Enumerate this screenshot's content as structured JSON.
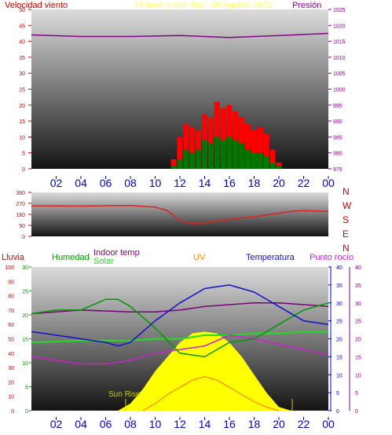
{
  "header": {
    "title_left": "Velocidad viento",
    "title_center": "24 hour graph day - 09 Agosto 2025",
    "title_right": "Presión"
  },
  "colors": {
    "wind_gust": "#ff0000",
    "wind_avg": "#007700",
    "wind_dir": "#dd2222",
    "pressure": "#880088",
    "temperature": "#1111cc",
    "humidity": "#009900",
    "dewpoint": "#cc22cc",
    "indoor_temp": "#7a007a",
    "indoor_hum": "#22dd22",
    "solar": "#ffff00",
    "uv": "#ff8800",
    "rain": "#cc0000",
    "axis_blue": "#0000cc"
  },
  "hour_labels": [
    "02",
    "04",
    "06",
    "08",
    "10",
    "12",
    "14",
    "16",
    "18",
    "20",
    "22",
    "00"
  ],
  "chart_data": [
    {
      "type": "bar",
      "name": "wind",
      "ylim_left": [
        0,
        50
      ],
      "ylim_right": [
        975,
        1025
      ],
      "left_ticks": [
        "0",
        "5",
        "10",
        "15",
        "20",
        "25",
        "30",
        "35",
        "40",
        "45",
        "50"
      ],
      "right_ticks": [
        "975",
        "980",
        "985",
        "990",
        "995",
        "1000",
        "1005",
        "1010",
        "1015",
        "1020",
        "1025"
      ],
      "x": [
        11.5,
        12,
        12.5,
        13,
        13.5,
        14,
        14.5,
        15,
        15.5,
        16,
        16.5,
        17,
        17.5,
        18,
        18.5,
        19,
        19.5,
        20
      ],
      "gust": [
        3,
        10,
        14,
        13,
        12,
        17,
        16,
        21,
        19,
        20,
        18,
        16,
        14,
        12,
        13,
        11,
        6,
        2
      ],
      "avg": [
        1,
        3,
        6,
        5,
        6,
        9,
        8,
        10,
        9,
        10,
        9,
        8,
        6,
        5,
        5,
        4,
        2,
        1
      ],
      "pressure": [
        [
          0,
          1017
        ],
        [
          4,
          1016.5
        ],
        [
          8,
          1016.5
        ],
        [
          12,
          1016.8
        ],
        [
          16,
          1016.2
        ],
        [
          20,
          1016.8
        ],
        [
          24,
          1017.5
        ]
      ]
    },
    {
      "type": "line",
      "name": "wind-direction",
      "ylim": [
        0,
        360
      ],
      "left_ticks": [
        "0",
        "90",
        "180",
        "270",
        "360"
      ],
      "compass": [
        "N",
        "W",
        "S",
        "E",
        "N"
      ],
      "values": [
        [
          0,
          250
        ],
        [
          4,
          248
        ],
        [
          8,
          252
        ],
        [
          10,
          240
        ],
        [
          11,
          210
        ],
        [
          12,
          130
        ],
        [
          13,
          105
        ],
        [
          14,
          110
        ],
        [
          15,
          125
        ],
        [
          16,
          140
        ],
        [
          18,
          160
        ],
        [
          19,
          175
        ],
        [
          20,
          190
        ],
        [
          21,
          205
        ],
        [
          22,
          210
        ],
        [
          24,
          205
        ]
      ]
    },
    {
      "type": "line",
      "name": "temperature-humidity",
      "legend": [
        "Lluvia",
        "Humedad",
        "Indoor temp",
        "Solar",
        "UV",
        "Temperatura",
        "Punto rocío"
      ],
      "rain_ticks": [
        "0",
        "10",
        "20",
        "30",
        "40",
        "50",
        "60",
        "70",
        "80",
        "90",
        "100"
      ],
      "hum_ticks": [
        "0",
        "5",
        "10",
        "15",
        "20",
        "25",
        "30"
      ],
      "temp_ticks": [
        "0",
        "5",
        "10",
        "15",
        "20",
        "25",
        "30",
        "35",
        "40"
      ],
      "ylim_temp": [
        0,
        40
      ],
      "annotation": "Sun Rise",
      "temperature": [
        [
          0,
          22
        ],
        [
          2,
          21
        ],
        [
          4,
          20
        ],
        [
          6,
          19
        ],
        [
          7,
          18
        ],
        [
          8,
          19
        ],
        [
          10,
          25
        ],
        [
          12,
          30
        ],
        [
          14,
          34
        ],
        [
          16,
          35
        ],
        [
          18,
          33
        ],
        [
          20,
          29
        ],
        [
          22,
          25
        ],
        [
          24,
          24
        ]
      ],
      "humidity": [
        [
          0,
          27
        ],
        [
          2,
          28
        ],
        [
          4,
          28
        ],
        [
          6,
          31
        ],
        [
          7,
          31
        ],
        [
          8,
          29
        ],
        [
          10,
          23
        ],
        [
          12,
          16
        ],
        [
          14,
          15
        ],
        [
          16,
          19
        ],
        [
          18,
          20
        ],
        [
          20,
          24
        ],
        [
          22,
          28
        ],
        [
          24,
          30
        ]
      ],
      "dewpoint": [
        [
          0,
          15
        ],
        [
          2,
          14
        ],
        [
          4,
          13
        ],
        [
          6,
          13
        ],
        [
          7,
          13.5
        ],
        [
          8,
          14
        ],
        [
          10,
          16
        ],
        [
          12,
          17
        ],
        [
          14,
          18
        ],
        [
          16,
          21
        ],
        [
          18,
          20
        ],
        [
          20,
          18.5
        ],
        [
          22,
          17
        ],
        [
          24,
          15.5
        ]
      ],
      "indoor_temp": [
        [
          0,
          27
        ],
        [
          4,
          28
        ],
        [
          8,
          27.5
        ],
        [
          10,
          27.5
        ],
        [
          12,
          28
        ],
        [
          14,
          29
        ],
        [
          16,
          29.5
        ],
        [
          18,
          30
        ],
        [
          20,
          30
        ],
        [
          22,
          29.5
        ],
        [
          24,
          29
        ]
      ],
      "indoor_hum": [
        [
          0,
          19
        ],
        [
          4,
          19.5
        ],
        [
          8,
          19.5
        ],
        [
          10,
          20
        ],
        [
          12,
          20
        ],
        [
          14,
          21
        ],
        [
          16,
          21
        ],
        [
          18,
          21.5
        ],
        [
          20,
          21.5
        ],
        [
          22,
          22
        ],
        [
          24,
          22
        ]
      ],
      "solar": [
        [
          7,
          0
        ],
        [
          8,
          2
        ],
        [
          9,
          6
        ],
        [
          10,
          11
        ],
        [
          11,
          15
        ],
        [
          12,
          19
        ],
        [
          13,
          21.5
        ],
        [
          14,
          22
        ],
        [
          15,
          21.5
        ],
        [
          16,
          19
        ],
        [
          17,
          15
        ],
        [
          18,
          10
        ],
        [
          19,
          5
        ],
        [
          20,
          1
        ],
        [
          21,
          0
        ]
      ],
      "uv": [
        [
          9,
          0
        ],
        [
          10,
          2
        ],
        [
          11,
          4.5
        ],
        [
          12,
          6.5
        ],
        [
          13,
          8.5
        ],
        [
          14,
          9.5
        ],
        [
          15,
          8.5
        ],
        [
          16,
          6.5
        ],
        [
          17,
          4.5
        ],
        [
          18,
          2.5
        ],
        [
          19,
          1
        ],
        [
          20,
          0
        ]
      ]
    }
  ]
}
